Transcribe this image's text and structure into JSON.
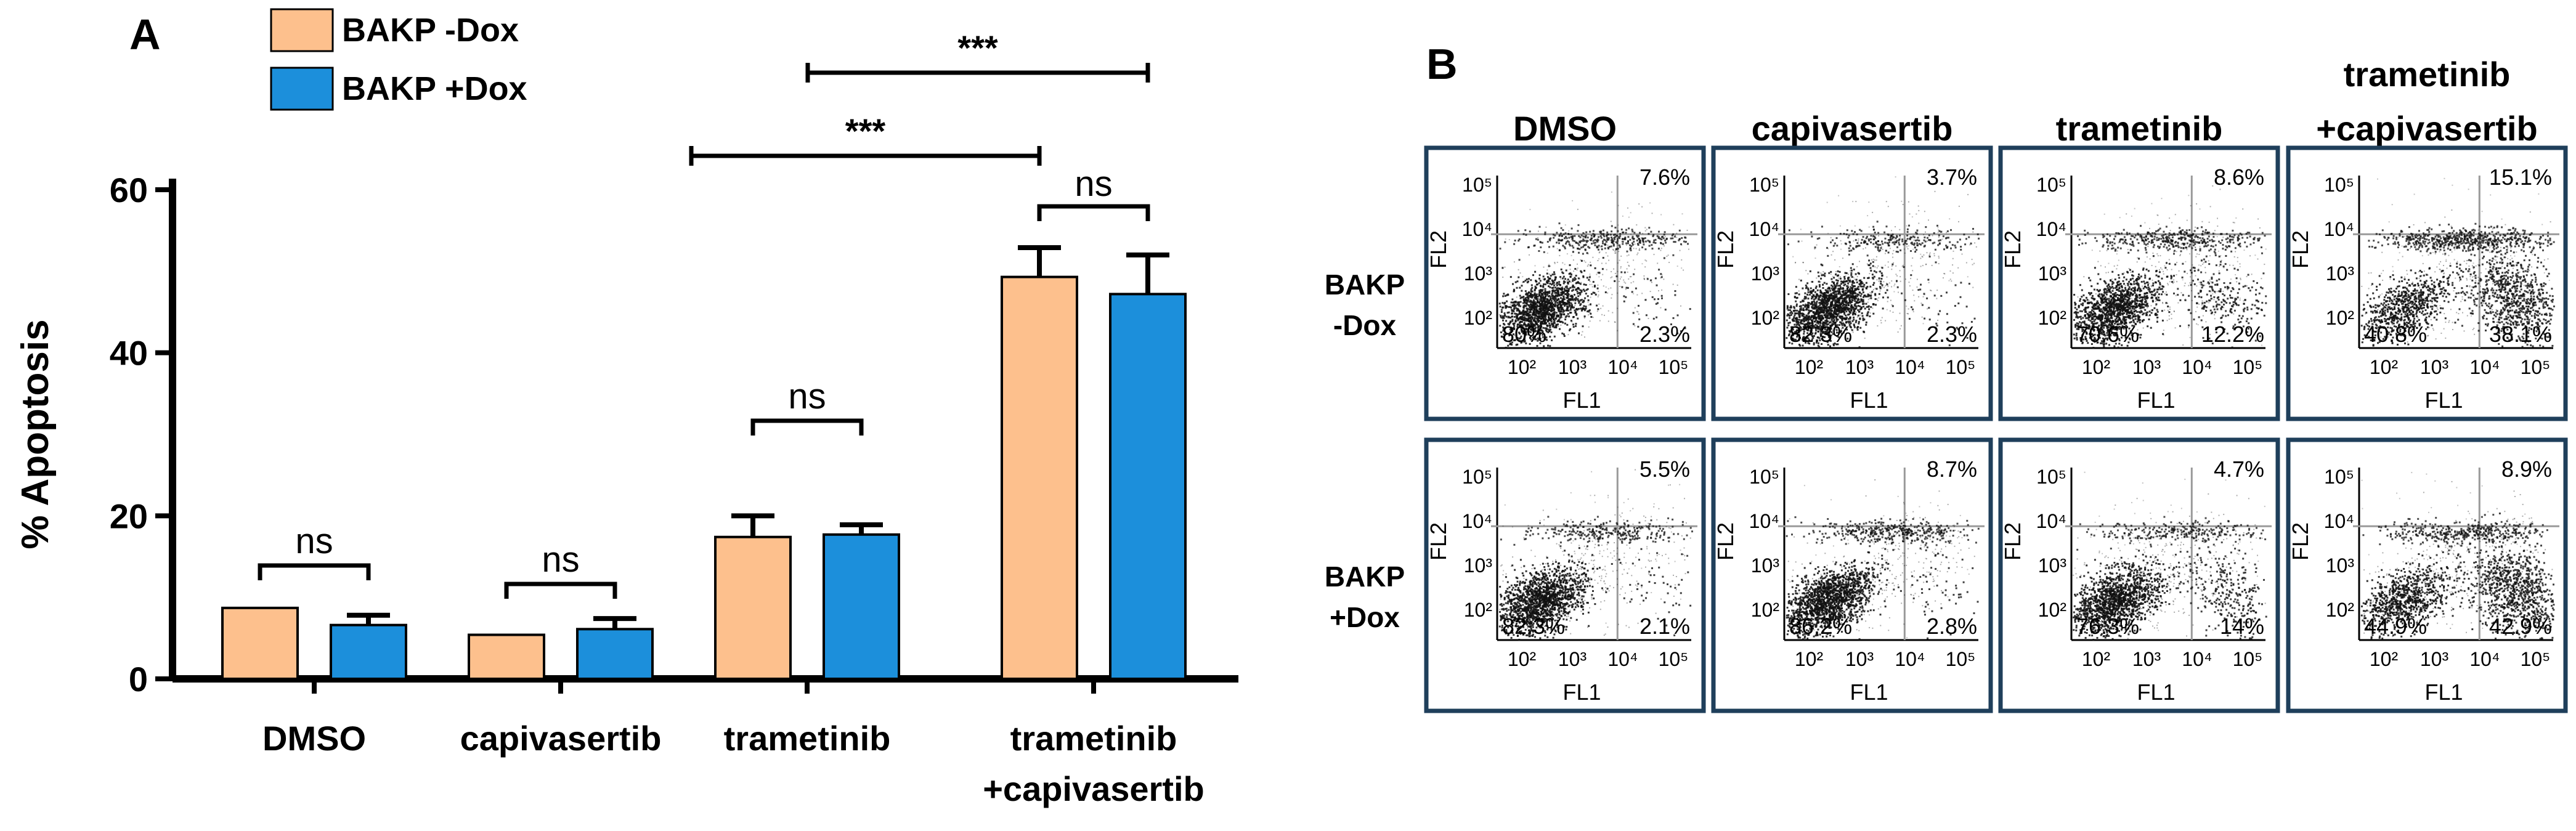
{
  "chart_data": [
    {
      "type": "bar",
      "panel_label": "A",
      "title": "",
      "xlabel": "",
      "ylabel": "% Apoptosis",
      "ylim": [
        0,
        60
      ],
      "yticks": [
        "0",
        "20",
        "40",
        "60"
      ],
      "categories": [
        "DMSO",
        "capivasertib",
        "trametinib",
        "trametinib\n+capivasertib"
      ],
      "series": [
        {
          "name": "BAKP -Dox",
          "color": "#fdc08d",
          "values": [
            8.7,
            5.4,
            17.4,
            49.3
          ],
          "errors": [
            0,
            0,
            2.6,
            3.6
          ]
        },
        {
          "name": "BAKP +Dox",
          "color": "#1c8fdb",
          "values": [
            6.6,
            6.1,
            17.7,
            47.2
          ],
          "errors": [
            1.2,
            1.3,
            1.2,
            4.8
          ]
        }
      ],
      "significance": [
        {
          "label": "ns",
          "category": 0,
          "between": "series"
        },
        {
          "label": "ns",
          "category": 1,
          "between": "series"
        },
        {
          "label": "ns",
          "category": 2,
          "between": "series"
        },
        {
          "label": "ns",
          "category": 3,
          "between": "series"
        },
        {
          "label": "***",
          "between": "trametinib vs trametinib+capivasertib (-Dox)"
        },
        {
          "label": "***",
          "between": "trametinib vs trametinib+capivasertib (+Dox)"
        }
      ],
      "legend_position": "top-left"
    },
    {
      "type": "scatter",
      "panel_label": "B",
      "subtype": "flow-cytometry-grid",
      "columns": [
        "DMSO",
        "capivasertib",
        "trametinib",
        "trametinib\n+capivasertib"
      ],
      "rows": [
        "BAKP\n-Dox",
        "BAKP\n+Dox"
      ],
      "xlabel": "FL1",
      "ylabel": "FL2",
      "x_ticks": [
        "10²",
        "10³",
        "10⁴",
        "10⁵"
      ],
      "y_ticks": [
        "10²",
        "10³",
        "10⁴",
        "10⁵"
      ],
      "quadrant_percentages": [
        [
          {
            "top_right": "7.6%",
            "bottom_left": "80%",
            "bottom_right": "2.3%"
          },
          {
            "top_right": "3.7%",
            "bottom_left": "82.3%",
            "bottom_right": "2.3%"
          },
          {
            "top_right": "8.6%",
            "bottom_left": "70.6%",
            "bottom_right": "12.2%"
          },
          {
            "top_right": "15.1%",
            "bottom_left": "40.8%",
            "bottom_right": "38.1%"
          }
        ],
        [
          {
            "top_right": "5.5%",
            "bottom_left": "82.3%",
            "bottom_right": "2.1%"
          },
          {
            "top_right": "8.7%",
            "bottom_left": "86.2%",
            "bottom_right": "2.8%"
          },
          {
            "top_right": "4.7%",
            "bottom_left": "76.3%",
            "bottom_right": "14%"
          },
          {
            "top_right": "8.9%",
            "bottom_left": "44.9%",
            "bottom_right": "42.9%"
          }
        ]
      ]
    }
  ]
}
